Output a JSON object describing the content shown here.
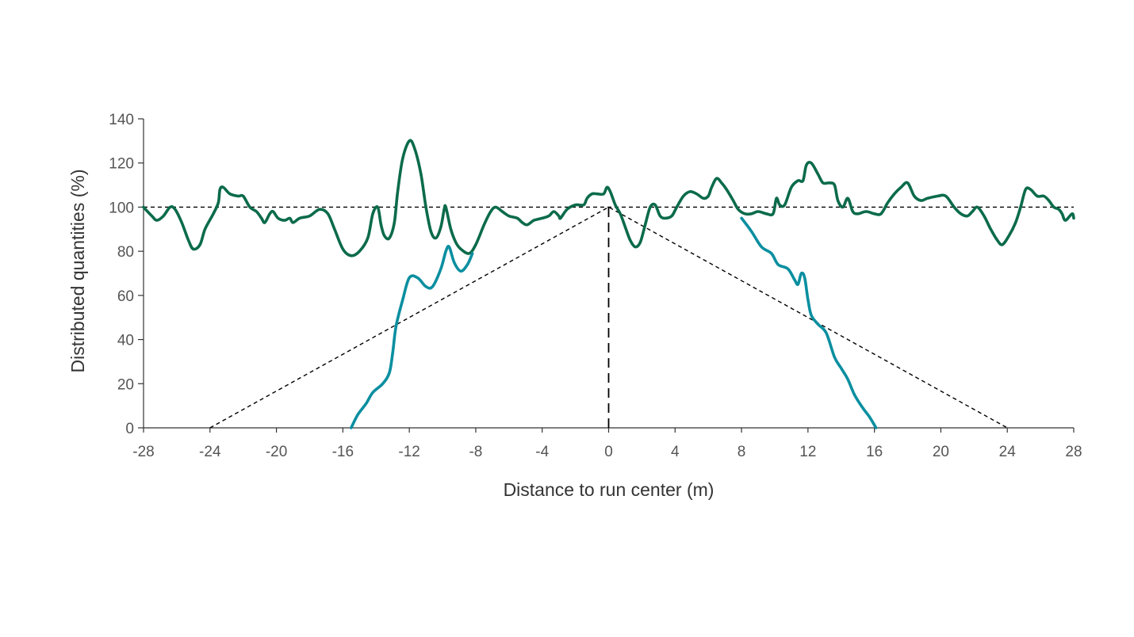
{
  "chart_data": {
    "type": "line",
    "title": "",
    "xlabel": "Distance to run center (m)",
    "ylabel": "Distributed quantities (%)",
    "xlim": [
      -28,
      28
    ],
    "ylim": [
      0,
      140
    ],
    "xticks": [
      -28,
      -24,
      -20,
      -16,
      -12,
      -8,
      -4,
      0,
      4,
      8,
      12,
      16,
      20,
      24,
      28
    ],
    "yticks": [
      0,
      20,
      40,
      60,
      80,
      100,
      120,
      140
    ],
    "grid": false,
    "legend": "none",
    "series": [
      {
        "color": "#0b6b4a",
        "style": "solid",
        "points": [
          [
            -28,
            100
          ],
          [
            -27.5,
            96
          ],
          [
            -27.2,
            94
          ],
          [
            -26.8,
            96
          ],
          [
            -26.4,
            100
          ],
          [
            -26.1,
            99
          ],
          [
            -25.7,
            93
          ],
          [
            -25.3,
            85
          ],
          [
            -25,
            81
          ],
          [
            -24.6,
            83
          ],
          [
            -24.3,
            90
          ],
          [
            -23.8,
            97
          ],
          [
            -23.5,
            102
          ],
          [
            -23.4,
            108
          ],
          [
            -23.2,
            109
          ],
          [
            -22.8,
            106
          ],
          [
            -22.3,
            105
          ],
          [
            -22,
            105
          ],
          [
            -21.6,
            100
          ],
          [
            -21.2,
            98
          ],
          [
            -20.9,
            95
          ],
          [
            -20.7,
            93
          ],
          [
            -20.4,
            97
          ],
          [
            -20.2,
            98
          ],
          [
            -19.9,
            95
          ],
          [
            -19.5,
            94
          ],
          [
            -19.2,
            95
          ],
          [
            -19,
            93
          ],
          [
            -18.6,
            95
          ],
          [
            -18,
            96
          ],
          [
            -17.4,
            99
          ],
          [
            -16.9,
            97
          ],
          [
            -16.5,
            90
          ],
          [
            -16,
            81
          ],
          [
            -15.5,
            78
          ],
          [
            -15,
            80
          ],
          [
            -14.5,
            86
          ],
          [
            -14.2,
            97
          ],
          [
            -13.9,
            100
          ],
          [
            -13.7,
            92
          ],
          [
            -13.5,
            87
          ],
          [
            -13.2,
            86
          ],
          [
            -12.9,
            93
          ],
          [
            -12.7,
            107
          ],
          [
            -12.4,
            122
          ],
          [
            -12,
            130
          ],
          [
            -11.7,
            127
          ],
          [
            -11.3,
            115
          ],
          [
            -11,
            100
          ],
          [
            -10.7,
            89
          ],
          [
            -10.4,
            86
          ],
          [
            -10.1,
            91
          ],
          [
            -9.9,
            99
          ],
          [
            -9.8,
            100
          ],
          [
            -9.5,
            90
          ],
          [
            -9.2,
            84
          ],
          [
            -8.9,
            81
          ],
          [
            -8.4,
            79
          ],
          [
            -8,
            83
          ],
          [
            -7.5,
            92
          ],
          [
            -7.1,
            98
          ],
          [
            -6.8,
            100
          ],
          [
            -6.4,
            98
          ],
          [
            -6,
            96
          ],
          [
            -5.5,
            95
          ],
          [
            -5.2,
            93
          ],
          [
            -4.9,
            92
          ],
          [
            -4.5,
            94
          ],
          [
            -4,
            95
          ],
          [
            -3.6,
            96
          ],
          [
            -3.3,
            98
          ],
          [
            -3,
            96
          ],
          [
            -2.9,
            95
          ],
          [
            -2.5,
            99
          ],
          [
            -2,
            101
          ],
          [
            -1.5,
            101
          ],
          [
            -1.3,
            104
          ],
          [
            -1,
            106
          ],
          [
            -0.7,
            106
          ],
          [
            -0.3,
            106
          ],
          [
            -0.1,
            109
          ],
          [
            0.1,
            107
          ],
          [
            0.4,
            101
          ],
          [
            0.7,
            97
          ],
          [
            1,
            91
          ],
          [
            1.3,
            85
          ],
          [
            1.6,
            82
          ],
          [
            1.9,
            84
          ],
          [
            2.2,
            92
          ],
          [
            2.5,
            100
          ],
          [
            2.8,
            101
          ],
          [
            3.1,
            96
          ],
          [
            3.4,
            95
          ],
          [
            3.8,
            96
          ],
          [
            4.1,
            100
          ],
          [
            4.5,
            105
          ],
          [
            4.9,
            107
          ],
          [
            5.3,
            106
          ],
          [
            5.7,
            104
          ],
          [
            6,
            105
          ],
          [
            6.2,
            109
          ],
          [
            6.5,
            113
          ],
          [
            6.8,
            111
          ],
          [
            7.1,
            108
          ],
          [
            7.5,
            103
          ],
          [
            7.8,
            99
          ],
          [
            8.2,
            97
          ],
          [
            8.6,
            97
          ],
          [
            9,
            98
          ],
          [
            9.5,
            97
          ],
          [
            9.9,
            97
          ],
          [
            10.1,
            104
          ],
          [
            10.3,
            101
          ],
          [
            10.6,
            101
          ],
          [
            11,
            109
          ],
          [
            11.4,
            112
          ],
          [
            11.7,
            112
          ],
          [
            11.9,
            119
          ],
          [
            12.2,
            120
          ],
          [
            12.6,
            115
          ],
          [
            12.9,
            111
          ],
          [
            13.3,
            111
          ],
          [
            13.6,
            110
          ],
          [
            13.8,
            103
          ],
          [
            14.1,
            100
          ],
          [
            14.4,
            104
          ],
          [
            14.7,
            98
          ],
          [
            15,
            97
          ],
          [
            15.5,
            98
          ],
          [
            16,
            97
          ],
          [
            16.4,
            97
          ],
          [
            16.8,
            102
          ],
          [
            17.2,
            106
          ],
          [
            17.6,
            109
          ],
          [
            18,
            111
          ],
          [
            18.4,
            105
          ],
          [
            18.8,
            103
          ],
          [
            19.2,
            104
          ],
          [
            19.8,
            105
          ],
          [
            20.3,
            105
          ],
          [
            20.8,
            100
          ],
          [
            21.2,
            97
          ],
          [
            21.6,
            96
          ],
          [
            21.9,
            98
          ],
          [
            22.2,
            100
          ],
          [
            22.6,
            96
          ],
          [
            23,
            90
          ],
          [
            23.4,
            85
          ],
          [
            23.7,
            83
          ],
          [
            24.1,
            87
          ],
          [
            24.5,
            93
          ],
          [
            24.8,
            100
          ],
          [
            25.1,
            108
          ],
          [
            25.4,
            108
          ],
          [
            25.8,
            105
          ],
          [
            26.2,
            105
          ],
          [
            26.5,
            103
          ],
          [
            26.8,
            100
          ],
          [
            27.1,
            99
          ],
          [
            27.3,
            97
          ],
          [
            27.5,
            94
          ],
          [
            27.9,
            97
          ],
          [
            28,
            95
          ]
        ]
      },
      {
        "color": "#0a8fa0",
        "style": "solid",
        "points": [
          [
            -15.5,
            0
          ],
          [
            -15.1,
            6
          ],
          [
            -14.6,
            11
          ],
          [
            -14.2,
            16
          ],
          [
            -13.6,
            20
          ],
          [
            -13.2,
            25
          ],
          [
            -13,
            34
          ],
          [
            -12.8,
            46
          ],
          [
            -12.4,
            58
          ],
          [
            -12,
            68
          ],
          [
            -11.5,
            68
          ],
          [
            -11,
            64
          ],
          [
            -10.6,
            64
          ],
          [
            -10.1,
            72
          ],
          [
            -9.8,
            80
          ],
          [
            -9.6,
            82
          ],
          [
            -9.3,
            75
          ],
          [
            -8.9,
            71
          ],
          [
            -8.5,
            74
          ],
          [
            -8.2,
            79
          ]
        ]
      },
      {
        "color": "#0a8fa0",
        "style": "solid",
        "points": [
          [
            8,
            95
          ],
          [
            8.6,
            89
          ],
          [
            9.2,
            82
          ],
          [
            9.8,
            79
          ],
          [
            10.2,
            74
          ],
          [
            10.8,
            72
          ],
          [
            11.2,
            67
          ],
          [
            11.4,
            65
          ],
          [
            11.6,
            70
          ],
          [
            11.8,
            68
          ],
          [
            12,
            58
          ],
          [
            12.2,
            51
          ],
          [
            12.6,
            47
          ],
          [
            13.1,
            43
          ],
          [
            13.6,
            32
          ],
          [
            14,
            27
          ],
          [
            14.4,
            22
          ],
          [
            14.8,
            15
          ],
          [
            15.3,
            9
          ],
          [
            15.7,
            5
          ],
          [
            16.1,
            0
          ]
        ]
      },
      {
        "color": "#000000",
        "style": "dotted",
        "points": [
          [
            -28,
            100
          ],
          [
            28,
            100
          ]
        ]
      },
      {
        "color": "#000000",
        "style": "dotted",
        "points": [
          [
            -24,
            0
          ],
          [
            0,
            100
          ],
          [
            24,
            0
          ]
        ]
      },
      {
        "color": "#000000",
        "style": "dashed",
        "points": [
          [
            0,
            0
          ],
          [
            0,
            100
          ]
        ]
      }
    ]
  }
}
